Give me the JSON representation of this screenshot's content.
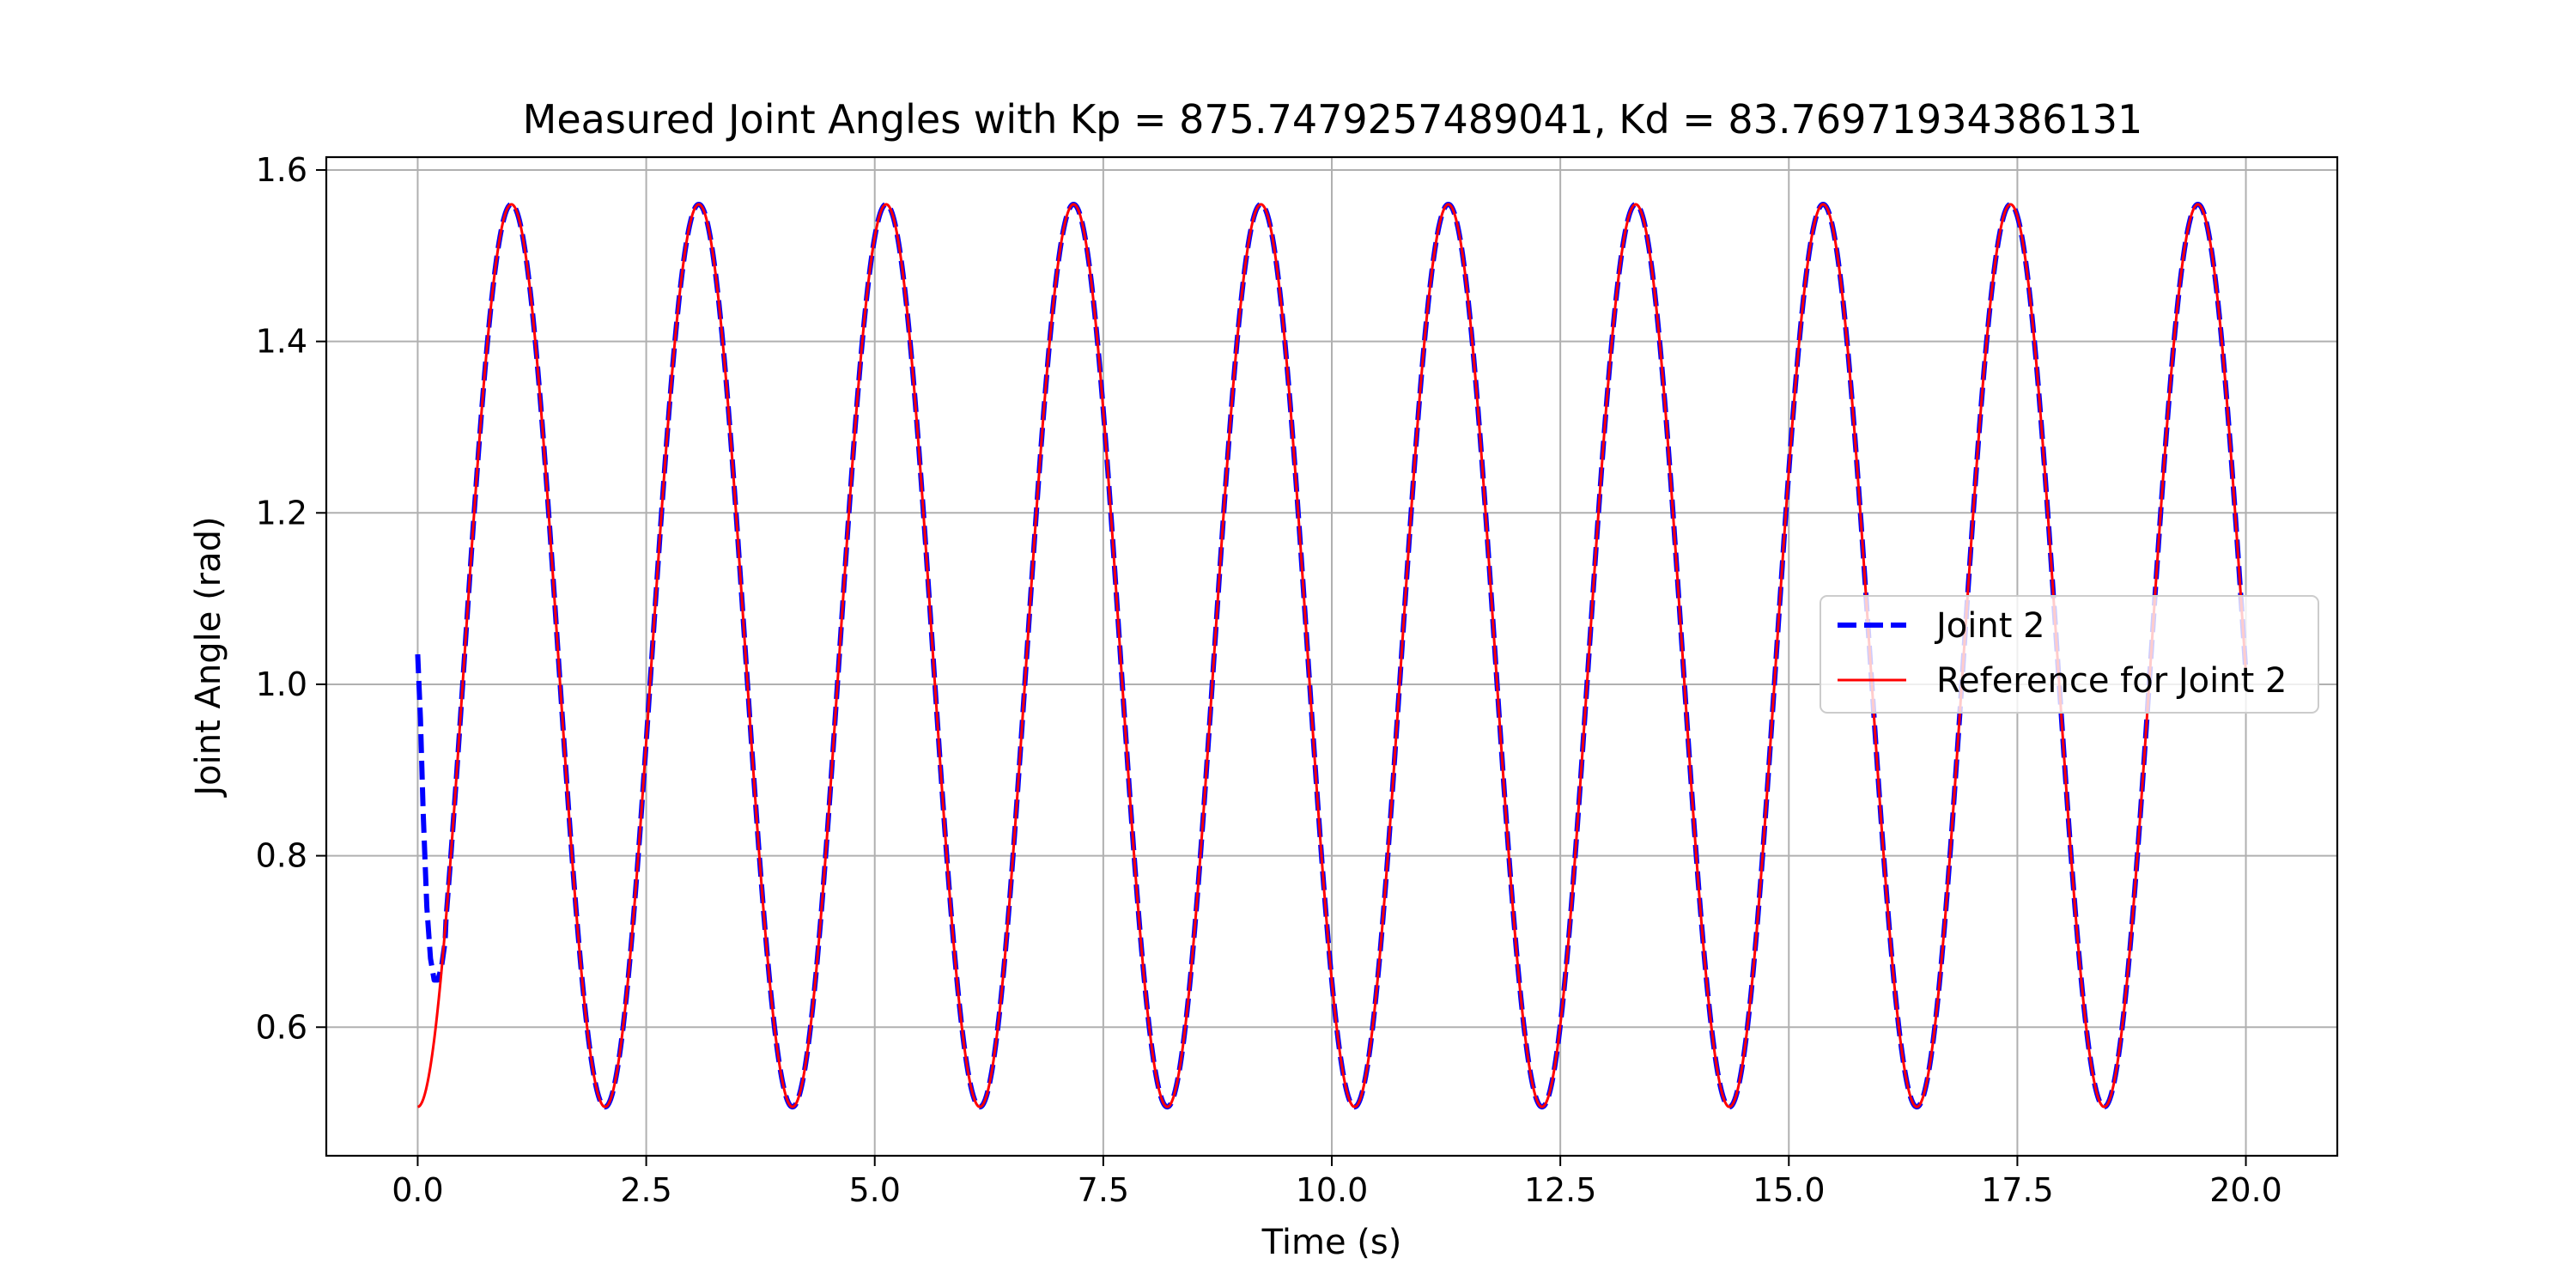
{
  "chart_data": {
    "type": "line",
    "title": "Measured Joint Angles with Kp = 875.7479257489041, Kd = 83.76971934386131",
    "xlabel": "Time (s)",
    "ylabel": "Joint Angle (rad)",
    "xlim": [
      -1.0,
      21.0
    ],
    "ylim": [
      0.45,
      1.615
    ],
    "xticks": [
      "0.0",
      "2.5",
      "5.0",
      "7.5",
      "10.0",
      "12.5",
      "15.0",
      "17.5",
      "20.0"
    ],
    "yticks": [
      "0.6",
      "0.8",
      "1.0",
      "1.2",
      "1.4",
      "1.6"
    ],
    "grid": true,
    "legend_position": "center-right",
    "reference_signal": {
      "form": "offset - amplitude * cos(2*pi*t/period)",
      "offset": 1.0335,
      "amplitude": 0.5265,
      "period": 2.05,
      "t_start": 0.0,
      "t_end": 20.0
    },
    "measured_initial_transient": {
      "t": [
        0.0,
        0.03,
        0.06,
        0.1,
        0.14,
        0.18,
        0.22,
        0.26,
        0.3
      ],
      "y": [
        1.035,
        0.96,
        0.85,
        0.74,
        0.68,
        0.655,
        0.655,
        0.67,
        0.7
      ]
    },
    "series": [
      {
        "name": "Joint 2",
        "color": "#0000ff",
        "style": "dashed"
      },
      {
        "name": "Reference for Joint 2",
        "color": "#ff0000",
        "style": "solid"
      }
    ]
  }
}
